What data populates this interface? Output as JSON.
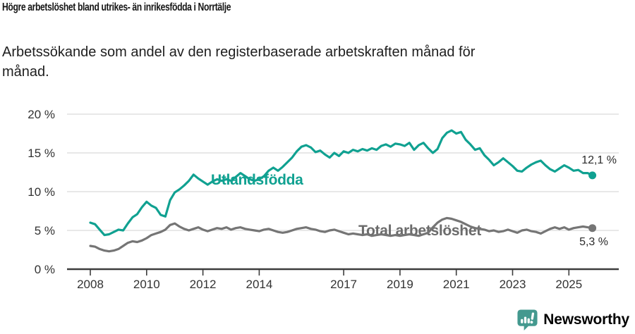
{
  "header": {
    "title": "Högre arbetslöshet bland utrikes- än inrikesfödda i Norrtälje",
    "subtitle": "Arbetssökande som andel av den registerbaserade arbetskraften månad för månad."
  },
  "chart_data": {
    "type": "line",
    "title": "Högre arbetslöshet bland utrikes- än inrikesfödda i Norrtälje",
    "subtitle": "Arbetssökande som andel av den registerbaserade arbetskraften månad för månad.",
    "grid": true,
    "x_axis": {
      "ticks": [
        2008,
        2010,
        2012,
        2014,
        2017,
        2019,
        2021,
        2023,
        2025
      ],
      "tick_labels": [
        "2008",
        "2010",
        "2012",
        "2014",
        "2017",
        "2019",
        "2021",
        "2023",
        "2025"
      ],
      "range_years": [
        2007.2,
        2026.8
      ]
    },
    "y_axis": {
      "ticks": [
        0,
        5,
        10,
        15,
        20
      ],
      "tick_labels": [
        "0 %",
        "5 %",
        "10 %",
        "15 %",
        "20 %"
      ],
      "range": [
        0,
        20
      ],
      "unit": "%"
    },
    "series": [
      {
        "name": "Utlandsfödda",
        "color": "#10A191",
        "label_color": "#10A191",
        "start": 2008.0,
        "step": 0.1666667,
        "end_value": 12.1,
        "end_label": "12,1 %",
        "values": [
          6.0,
          5.8,
          5.1,
          4.4,
          4.5,
          4.8,
          5.1,
          5.0,
          5.9,
          6.7,
          7.1,
          8.0,
          8.7,
          8.2,
          7.9,
          7.0,
          6.8,
          8.9,
          9.9,
          10.3,
          10.8,
          11.4,
          12.2,
          11.7,
          11.3,
          10.9,
          11.3,
          11.6,
          11.4,
          11.6,
          11.4,
          11.9,
          12.4,
          12.0,
          11.6,
          11.4,
          11.6,
          12.0,
          12.7,
          13.1,
          12.7,
          13.2,
          13.8,
          14.4,
          15.2,
          15.8,
          16.0,
          15.7,
          15.1,
          15.3,
          14.8,
          14.4,
          15.0,
          14.6,
          15.2,
          15.0,
          15.4,
          15.2,
          15.5,
          15.3,
          15.6,
          15.4,
          15.9,
          16.1,
          15.8,
          16.2,
          16.1,
          15.9,
          16.3,
          15.4,
          16.0,
          16.3,
          15.6,
          15.0,
          15.5,
          16.9,
          17.6,
          17.9,
          17.5,
          17.7,
          16.7,
          16.1,
          15.4,
          15.6,
          14.7,
          14.1,
          13.4,
          13.8,
          14.3,
          13.8,
          13.3,
          12.7,
          12.6,
          13.1,
          13.5,
          13.8,
          14.0,
          13.4,
          12.9,
          12.6,
          13.0,
          13.4,
          13.1,
          12.7,
          12.8,
          12.4,
          12.4,
          12.1
        ]
      },
      {
        "name": "Total arbetslöshet",
        "color": "#757575",
        "label_color": "#6b6b6b",
        "start": 2008.0,
        "step": 0.1666667,
        "end_value": 5.3,
        "end_label": "5,3 %",
        "values": [
          3.0,
          2.9,
          2.6,
          2.4,
          2.3,
          2.4,
          2.6,
          3.0,
          3.4,
          3.6,
          3.5,
          3.7,
          4.0,
          4.4,
          4.6,
          4.8,
          5.1,
          5.7,
          5.9,
          5.5,
          5.2,
          5.0,
          5.2,
          5.4,
          5.1,
          4.9,
          5.1,
          5.3,
          5.2,
          5.4,
          5.1,
          5.3,
          5.4,
          5.2,
          5.1,
          5.0,
          4.9,
          5.1,
          5.2,
          5.0,
          4.8,
          4.7,
          4.8,
          5.0,
          5.2,
          5.3,
          5.4,
          5.2,
          5.1,
          4.9,
          4.8,
          5.0,
          5.1,
          4.9,
          4.7,
          4.5,
          4.6,
          4.5,
          4.4,
          4.5,
          4.3,
          4.4,
          4.5,
          4.4,
          4.3,
          4.4,
          4.3,
          4.4,
          4.5,
          4.4,
          4.3,
          4.5,
          4.7,
          5.4,
          6.0,
          6.4,
          6.6,
          6.5,
          6.3,
          6.1,
          5.8,
          5.5,
          5.3,
          5.2,
          5.1,
          4.9,
          5.0,
          4.8,
          4.9,
          5.1,
          4.9,
          4.7,
          5.0,
          5.1,
          4.9,
          4.8,
          4.6,
          4.9,
          5.2,
          5.4,
          5.2,
          5.4,
          5.1,
          5.3,
          5.4,
          5.5,
          5.4,
          5.3
        ]
      }
    ],
    "colors": {
      "gridline": "#d9d9d9",
      "axis_line": "#3d3d3d",
      "tick_text": "#323232"
    }
  },
  "footer": {
    "brand": "Newsworthy",
    "brand_color": "#44998F",
    "icon": "bar-chart-speech-bubble-icon"
  }
}
